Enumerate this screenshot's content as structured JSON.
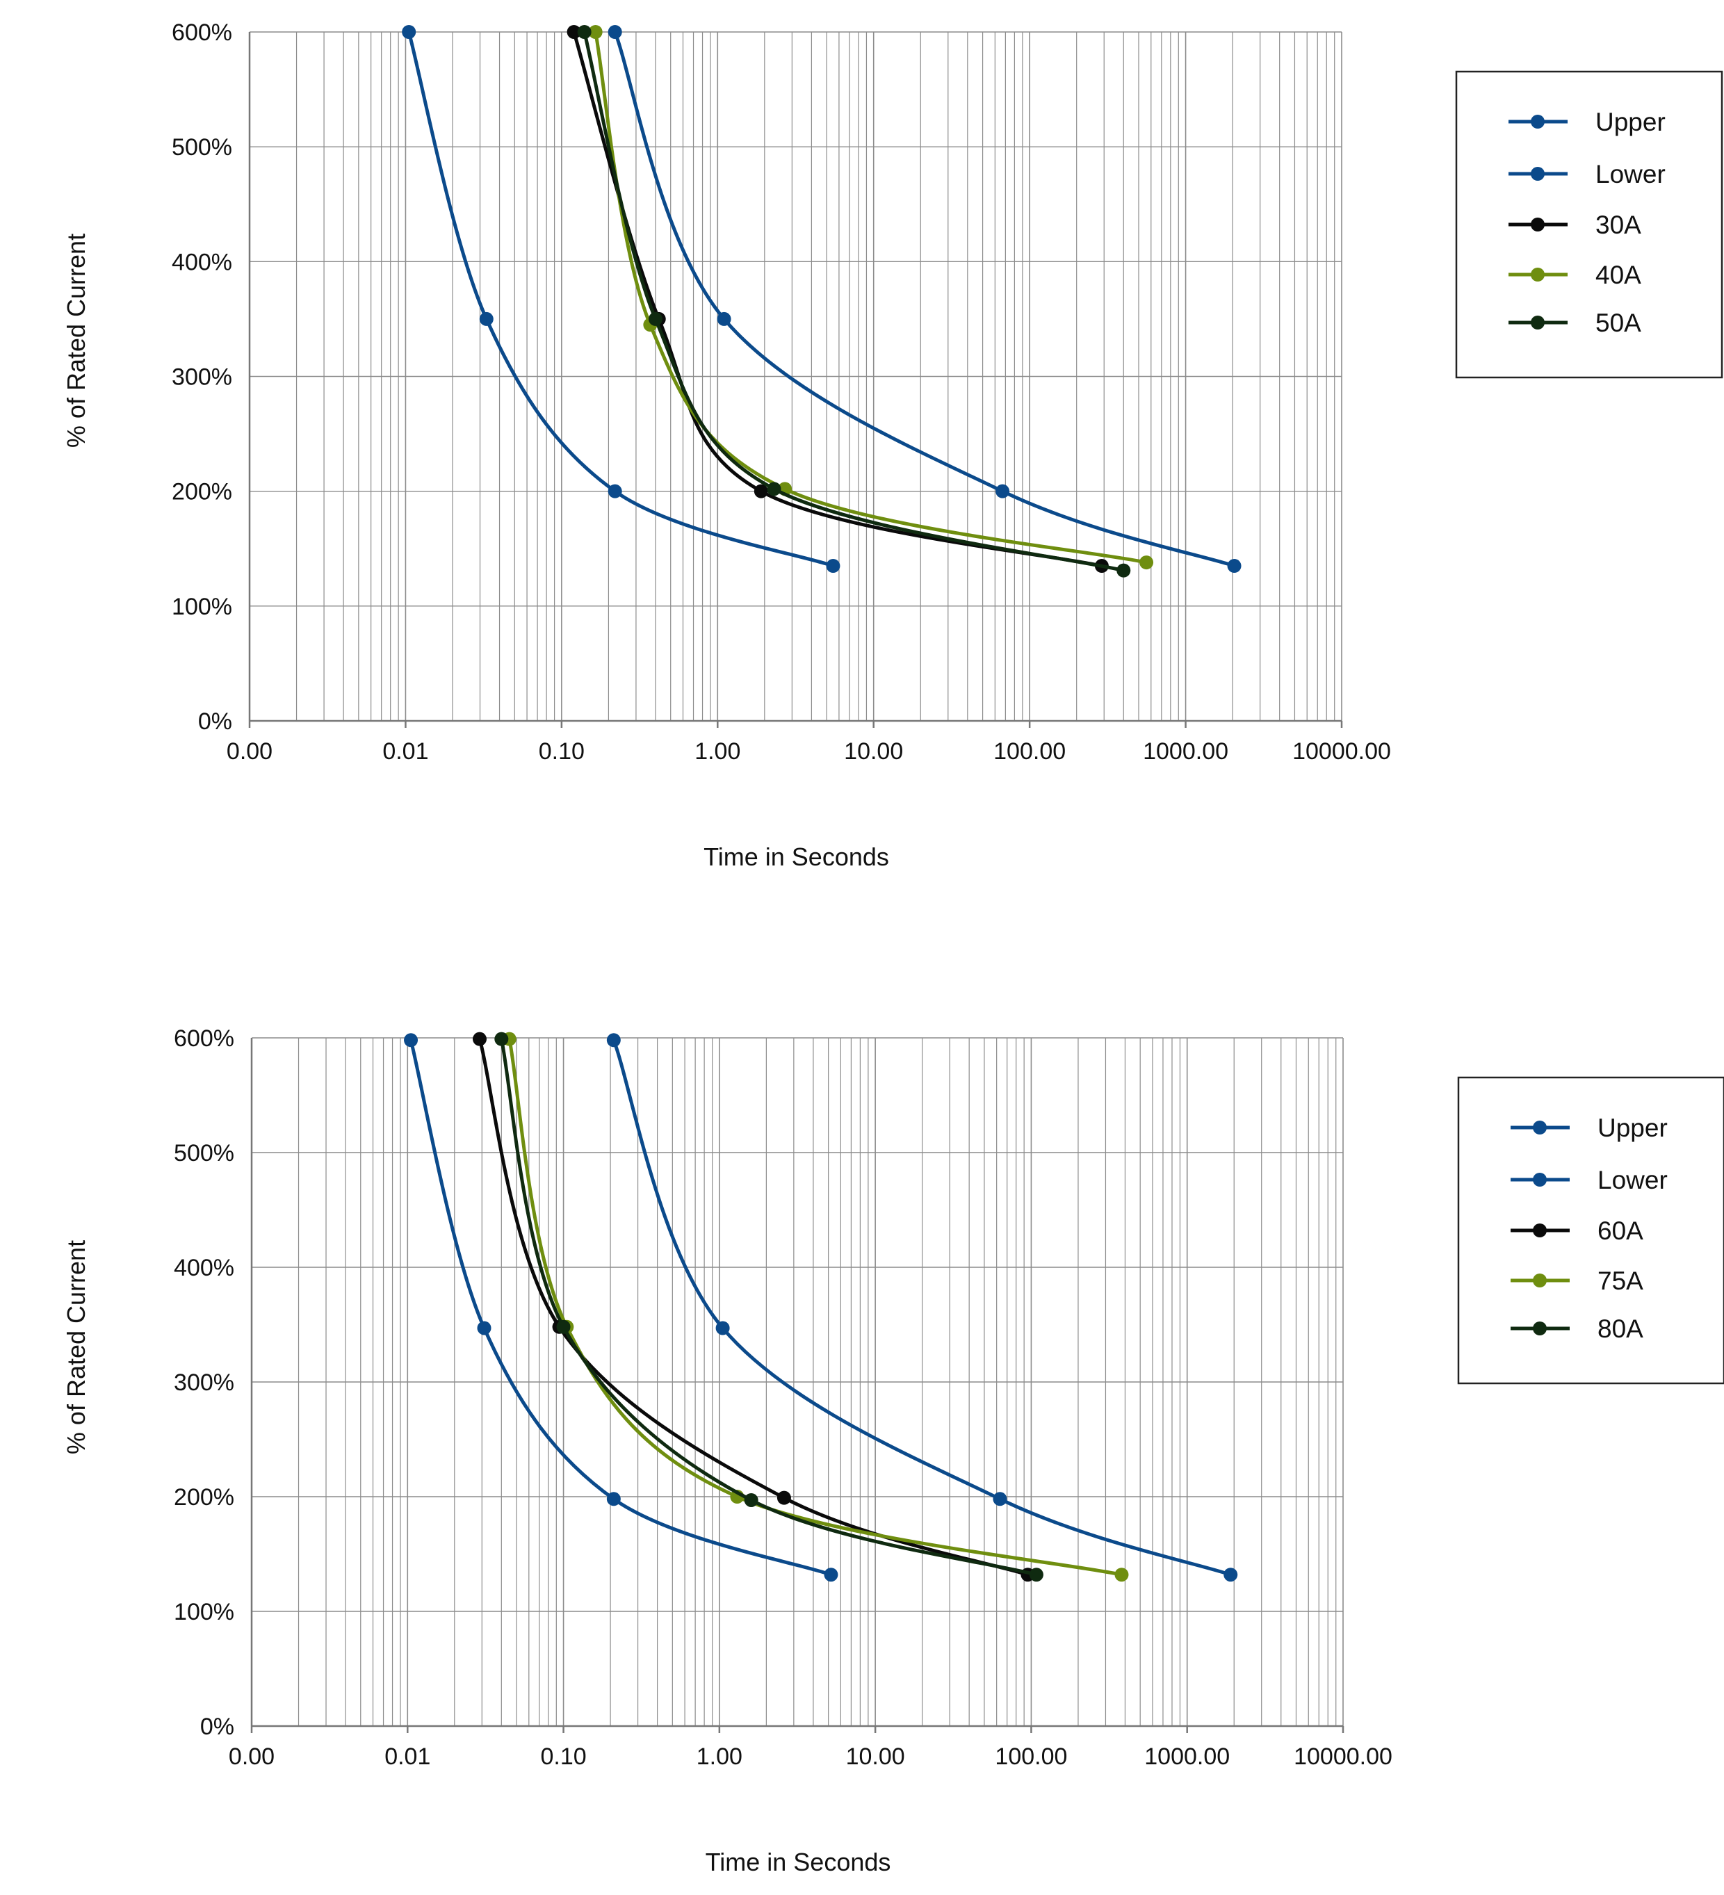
{
  "colors": {
    "blue": "#0b4a8b",
    "green": "#6f8e0f",
    "black": "#0a0a0a",
    "darkgreen": "#0f2a10",
    "grid": "#8c8c8c"
  },
  "charts": [
    {
      "type": "line",
      "xscale": "log",
      "xlim": [
        0.001,
        10000
      ],
      "ylim": [
        0,
        600
      ],
      "grid": true,
      "legend_position": "right",
      "xlabel": "Time in Seconds",
      "ylabel": "% of Rated Current",
      "x_tick_labels": [
        "0.00",
        "0.01",
        "0.10",
        "1.00",
        "10.00",
        "100.00",
        "1000.00",
        "10000.00"
      ],
      "y_tick_labels": [
        "0%",
        "100%",
        "200%",
        "300%",
        "400%",
        "500%",
        "600%"
      ],
      "series": [
        {
          "name": "Upper",
          "color": "blue",
          "points": [
            [
              0.0105,
              600
            ],
            [
              0.033,
              350
            ],
            [
              0.22,
              200
            ],
            [
              5.5,
              135
            ]
          ]
        },
        {
          "name": "Lower",
          "color": "blue",
          "points": [
            [
              0.22,
              600
            ],
            [
              1.1,
              350
            ],
            [
              67,
              200
            ],
            [
              2050,
              135
            ]
          ]
        },
        {
          "name": "30A",
          "color": "black",
          "points": [
            [
              0.12,
              600
            ],
            [
              0.42,
              350
            ],
            [
              1.9,
              200
            ],
            [
              290,
              135
            ]
          ]
        },
        {
          "name": "40A",
          "color": "green",
          "points": [
            [
              0.165,
              600
            ],
            [
              0.37,
              345
            ],
            [
              2.7,
              202
            ],
            [
              560,
              138
            ]
          ]
        },
        {
          "name": "50A",
          "color": "darkgreen",
          "points": [
            [
              0.14,
              600
            ],
            [
              0.4,
              350
            ],
            [
              2.3,
              202
            ],
            [
              400,
              131
            ]
          ]
        }
      ]
    },
    {
      "type": "line",
      "xscale": "log",
      "xlim": [
        0.001,
        10000
      ],
      "ylim": [
        0,
        600
      ],
      "grid": true,
      "legend_position": "right",
      "xlabel": "Time in Seconds",
      "ylabel": "% of Rated Current",
      "x_tick_labels": [
        "0.00",
        "0.01",
        "0.10",
        "1.00",
        "10.00",
        "100.00",
        "1000.00",
        "10000.00"
      ],
      "y_tick_labels": [
        "0%",
        "100%",
        "200%",
        "300%",
        "400%",
        "500%",
        "600%"
      ],
      "series": [
        {
          "name": "Upper",
          "color": "blue",
          "points": [
            [
              0.0105,
              598
            ],
            [
              0.031,
              347
            ],
            [
              0.21,
              198
            ],
            [
              5.2,
              132
            ]
          ]
        },
        {
          "name": "Lower",
          "color": "blue",
          "points": [
            [
              0.21,
              598
            ],
            [
              1.05,
              347
            ],
            [
              63,
              198
            ],
            [
              1900,
              132
            ]
          ]
        },
        {
          "name": "60A",
          "color": "black",
          "points": [
            [
              0.029,
              599
            ],
            [
              0.094,
              348
            ],
            [
              2.6,
              199
            ],
            [
              95,
              132
            ]
          ]
        },
        {
          "name": "75A",
          "color": "green",
          "points": [
            [
              0.045,
              599
            ],
            [
              0.105,
              348
            ],
            [
              1.3,
              200
            ],
            [
              380,
              132
            ]
          ]
        },
        {
          "name": "80A",
          "color": "darkgreen",
          "points": [
            [
              0.04,
              599
            ],
            [
              0.1,
              348
            ],
            [
              1.6,
              197
            ],
            [
              108,
              132
            ]
          ]
        }
      ]
    }
  ]
}
